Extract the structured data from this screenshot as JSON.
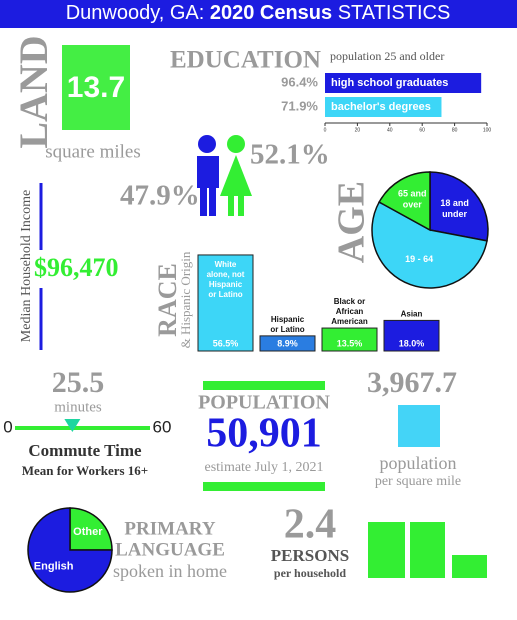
{
  "header": {
    "place": "Dunwoody, GA:",
    "census": "2020 Census",
    "statistics": "STATISTICS"
  },
  "land": {
    "label": "LAND",
    "value": "13.7",
    "unit": "square miles"
  },
  "education": {
    "title": "EDUCATION",
    "subtitle": "population 25 and older",
    "xlim": [
      0,
      100
    ],
    "xticks": [
      0,
      20,
      40,
      60,
      80,
      100
    ],
    "bars": [
      {
        "name": "high school graduates",
        "value": 96.4,
        "value_label": "96.4%"
      },
      {
        "name": "bachelor's degrees",
        "value": 71.9,
        "value_label": "71.9%"
      }
    ]
  },
  "gender": {
    "male": "47.9%",
    "female": "52.1%"
  },
  "income": {
    "label": "Median Household Income",
    "value": "$96,470"
  },
  "age": {
    "title": "AGE",
    "slices": [
      {
        "name": "18 and under",
        "value": 28,
        "color": "#1c1ce0"
      },
      {
        "name": "19 - 64",
        "value": 55,
        "color": "#3dd6f7"
      },
      {
        "name": "65 and over",
        "value": 17,
        "color": "#33ee33"
      }
    ]
  },
  "race": {
    "title": "RACE",
    "subtitle": "& Hispanic Origin",
    "bars": [
      {
        "name": "White alone, not Hispanic or Latino",
        "value": 56.5,
        "value_label": "56.5%",
        "color": "#3dd6f7"
      },
      {
        "name": "Hispanic or Latino",
        "value": 8.9,
        "value_label": "8.9%",
        "color": "#2a7de1"
      },
      {
        "name": "Black or African American",
        "value": 13.5,
        "value_label": "13.5%",
        "color": "#33ee33"
      },
      {
        "name": "Asian",
        "value": 18.0,
        "value_label": "18.0%",
        "color": "#1c1ce0"
      }
    ]
  },
  "commute": {
    "value": 25.5,
    "unit": "minutes",
    "scale": [
      0,
      60
    ],
    "title": "Commute Time",
    "subtitle": "Mean for Workers 16+"
  },
  "population": {
    "title": "POPULATION",
    "value": "50,901",
    "note": "estimate July 1, 2021"
  },
  "density": {
    "value": "3,967.7",
    "label": "population",
    "unit": "per square mile"
  },
  "language": {
    "title_1": "PRIMARY",
    "title_2": "LANGUAGE",
    "subtitle": "spoken in home",
    "slices": [
      {
        "name": "Other",
        "value": 25,
        "color": "#33ee33"
      },
      {
        "name": "English",
        "value": 75,
        "color": "#1c1ce0"
      }
    ]
  },
  "household": {
    "value": "2.4",
    "label": "PERSONS",
    "unit": "per household"
  }
}
